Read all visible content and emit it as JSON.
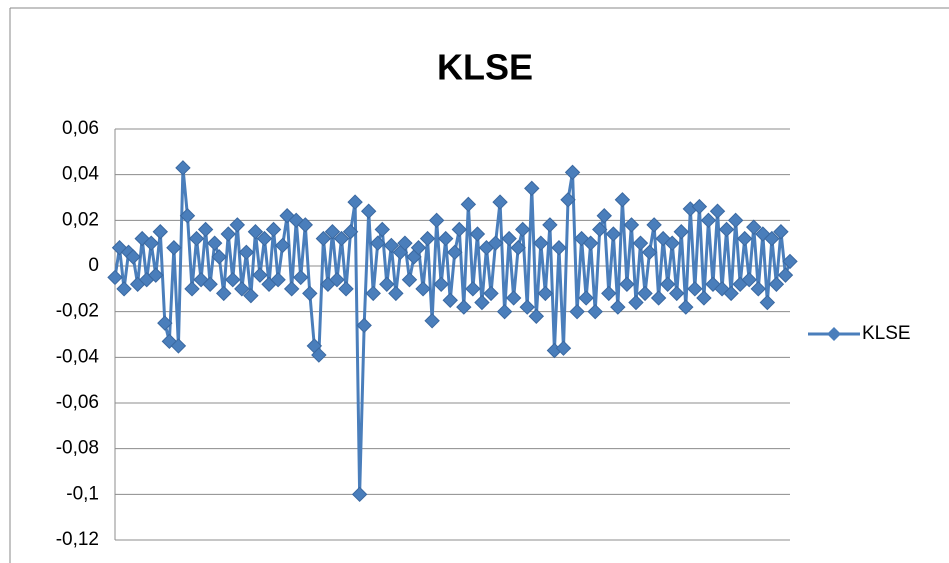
{
  "chart_data": {
    "type": "line",
    "title": "KLSE",
    "ylim": [
      -0.12,
      0.06
    ],
    "yticks": [
      {
        "value": 0.06,
        "label": "0,06"
      },
      {
        "value": 0.04,
        "label": "0,04"
      },
      {
        "value": 0.02,
        "label": "0,02"
      },
      0,
      {
        "value": -0.02,
        "label": "-0,02"
      },
      {
        "value": -0.04,
        "label": "-0,04"
      },
      {
        "value": -0.06,
        "label": "-0,06"
      },
      {
        "value": -0.08,
        "label": "-0,08"
      },
      {
        "value": -0.1,
        "label": "-0,1"
      },
      {
        "value": -0.12,
        "label": "-0,12"
      }
    ],
    "grid": true,
    "legend": "right",
    "series": [
      {
        "name": "KLSE",
        "color": "#4a7ebb",
        "values": [
          -0.005,
          0.008,
          -0.01,
          0.006,
          0.004,
          -0.008,
          0.012,
          -0.006,
          0.01,
          -0.004,
          0.015,
          -0.025,
          -0.033,
          0.008,
          -0.035,
          0.043,
          0.022,
          -0.01,
          0.012,
          -0.006,
          0.016,
          -0.008,
          0.01,
          0.004,
          -0.012,
          0.014,
          -0.006,
          0.018,
          -0.01,
          0.006,
          -0.013,
          0.015,
          -0.004,
          0.012,
          -0.008,
          0.016,
          -0.006,
          0.009,
          0.022,
          -0.01,
          0.02,
          -0.005,
          0.018,
          -0.012,
          -0.035,
          -0.039,
          0.012,
          -0.008,
          0.015,
          -0.006,
          0.012,
          -0.01,
          0.015,
          0.028,
          -0.1,
          -0.026,
          0.024,
          -0.012,
          0.01,
          0.016,
          -0.008,
          0.009,
          -0.012,
          0.006,
          0.01,
          -0.006,
          0.004,
          0.008,
          -0.01,
          0.012,
          -0.024,
          0.02,
          -0.008,
          0.012,
          -0.015,
          0.006,
          0.016,
          -0.018,
          0.027,
          -0.01,
          0.014,
          -0.016,
          0.008,
          -0.012,
          0.01,
          0.028,
          -0.02,
          0.012,
          -0.014,
          0.008,
          0.016,
          -0.018,
          0.034,
          -0.022,
          0.01,
          -0.012,
          0.018,
          -0.037,
          0.008,
          -0.036,
          0.029,
          0.041,
          -0.02,
          0.012,
          -0.014,
          0.01,
          -0.02,
          0.016,
          0.022,
          -0.012,
          0.014,
          -0.018,
          0.029,
          -0.008,
          0.018,
          -0.016,
          0.01,
          -0.012,
          0.006,
          0.018,
          -0.014,
          0.012,
          -0.008,
          0.01,
          -0.012,
          0.015,
          -0.018,
          0.025,
          -0.01,
          0.026,
          -0.014,
          0.02,
          -0.008,
          0.024,
          -0.01,
          0.016,
          -0.012,
          0.02,
          -0.008,
          0.012,
          -0.006,
          0.017,
          -0.01,
          0.014,
          -0.016,
          0.012,
          -0.008,
          0.015,
          -0.004,
          0.002
        ]
      }
    ]
  }
}
